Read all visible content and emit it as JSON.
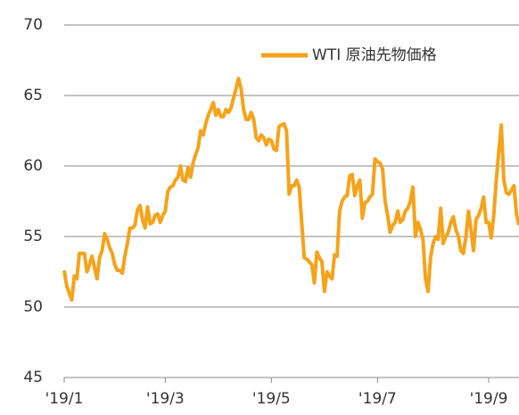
{
  "chart_data": {
    "type": "line",
    "categories": [
      "'19/1",
      null,
      null,
      null,
      null,
      null,
      null,
      null,
      null,
      null,
      null,
      null,
      null,
      null,
      null,
      null,
      null,
      null,
      null,
      null,
      null,
      null,
      null,
      null,
      null,
      null,
      null,
      null,
      null,
      null,
      null,
      null,
      null,
      null,
      null,
      null,
      null,
      null,
      null,
      null,
      "'19/3",
      null,
      null,
      null,
      null,
      null,
      null,
      null,
      null,
      null,
      null,
      null,
      null,
      null,
      null,
      null,
      null,
      null,
      null,
      null,
      null,
      null,
      null,
      null,
      null,
      null,
      null,
      null,
      null,
      null,
      null,
      null,
      null,
      null,
      null,
      null,
      null,
      null,
      null,
      null,
      null,
      null,
      "'19/5",
      null,
      null,
      null,
      null,
      null,
      null,
      null,
      null,
      null,
      null,
      null,
      null,
      null,
      null,
      null,
      null,
      null,
      null,
      null,
      null,
      null,
      null,
      null,
      null,
      null,
      null,
      null,
      null,
      null,
      null,
      null,
      null,
      null,
      null,
      null,
      null,
      null,
      null,
      null,
      null,
      null,
      "'19/7",
      null,
      null,
      null,
      null,
      null,
      null,
      null,
      null,
      null,
      null,
      null,
      null,
      null,
      null,
      null,
      null,
      null,
      null,
      null,
      null,
      null,
      null,
      null,
      null,
      null,
      null,
      null,
      null,
      null,
      null,
      null,
      null,
      null,
      null,
      null,
      null,
      null,
      null,
      null,
      null,
      null,
      null,
      null,
      "'19/9",
      null,
      null,
      null,
      null,
      null,
      null,
      null,
      null,
      null,
      null,
      null,
      null
    ],
    "series": [
      {
        "name": "WTI 原油先物価格",
        "color": "#f5a31a",
        "values": [
          52.6,
          51.5,
          51.0,
          50.5,
          52.2,
          52.0,
          53.8,
          53.8,
          53.8,
          52.5,
          53.0,
          53.6,
          52.8,
          52.0,
          53.5,
          54.0,
          55.2,
          54.8,
          54.2,
          53.8,
          53.0,
          52.6,
          52.6,
          52.4,
          53.6,
          54.5,
          55.6,
          55.6,
          55.8,
          56.9,
          57.2,
          56.2,
          55.6,
          57.1,
          55.9,
          56.0,
          56.5,
          56.6,
          56.0,
          56.5,
          56.8,
          58.2,
          58.5,
          58.6,
          59.0,
          59.2,
          60.0,
          59.0,
          58.9,
          59.9,
          59.2,
          60.2,
          60.8,
          61.3,
          62.5,
          62.2,
          63.0,
          63.6,
          64.0,
          64.5,
          63.6,
          64.0,
          63.5,
          63.5,
          64.0,
          63.8,
          64.1,
          64.8,
          65.5,
          66.2,
          65.5,
          64.0,
          63.3,
          63.3,
          63.8,
          63.3,
          62.0,
          61.8,
          62.2,
          62.0,
          61.5,
          61.9,
          61.8,
          61.2,
          61.1,
          62.8,
          62.9,
          63.0,
          62.5,
          58.0,
          58.6,
          58.6,
          59.0,
          58.5,
          56.0,
          53.5,
          53.4,
          53.2,
          53.0,
          51.7,
          53.9,
          53.5,
          53.2,
          51.1,
          52.5,
          52.2,
          52.0,
          53.7,
          53.6,
          56.8,
          57.5,
          57.8,
          57.9,
          59.3,
          59.4,
          57.9,
          58.6,
          59.0,
          56.3,
          57.4,
          57.5,
          57.8,
          58.0,
          60.5,
          60.3,
          60.2,
          59.8,
          57.5,
          56.5,
          55.3,
          55.8,
          56.0,
          56.8,
          56.0,
          56.2,
          56.8,
          57.0,
          57.5,
          58.5,
          55.0,
          56.0,
          55.5,
          54.8,
          52.0,
          51.1,
          53.5,
          54.5,
          55.0,
          54.8,
          57.0,
          54.5,
          55.0,
          55.3,
          56.0,
          56.4,
          55.5,
          55.0,
          54.0,
          53.8,
          55.0,
          56.8,
          55.5,
          54.0,
          56.2,
          56.5,
          57.0,
          57.8,
          56.0,
          56.0,
          54.9,
          56.5,
          59.0,
          61.0,
          62.9,
          59.0,
          58.1,
          58.0,
          58.3,
          58.6,
          56.6,
          55.8
        ]
      }
    ],
    "ylim": [
      45,
      70
    ],
    "yticks": [
      45,
      50,
      55,
      60,
      65,
      70
    ],
    "grid": true
  }
}
